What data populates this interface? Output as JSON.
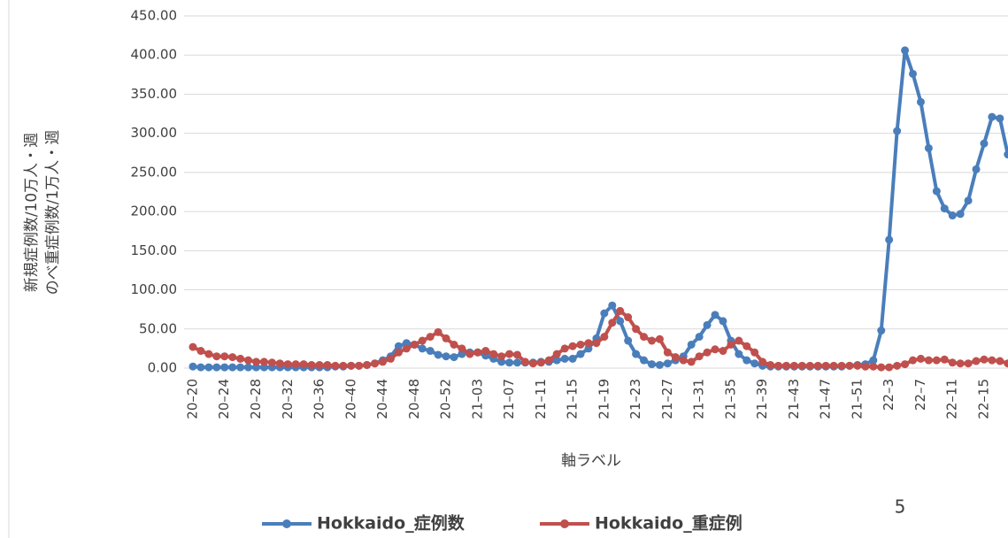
{
  "chart_data": {
    "type": "line",
    "y_label_lines": [
      "新規症例数/10万人・週",
      "のべ重症例数/1万人・週"
    ],
    "x_label": "軸ラベル",
    "annotation": "5",
    "categories": [
      "20–20",
      null,
      null,
      null,
      "20–24",
      null,
      null,
      null,
      "20–28",
      null,
      null,
      null,
      "20–32",
      null,
      null,
      null,
      "20–36",
      null,
      null,
      null,
      "20–40",
      null,
      null,
      null,
      "20–44",
      null,
      null,
      null,
      "20–48",
      null,
      null,
      null,
      "20–52",
      null,
      null,
      null,
      "21–03",
      null,
      null,
      null,
      "21–07",
      null,
      null,
      null,
      "21–11",
      null,
      null,
      null,
      "21–15",
      null,
      null,
      null,
      "21–19",
      null,
      null,
      null,
      "21–23",
      null,
      null,
      null,
      "21–27",
      null,
      null,
      null,
      "21–31",
      null,
      null,
      null,
      "21–35",
      null,
      null,
      null,
      "21–39",
      null,
      null,
      null,
      "21–43",
      null,
      null,
      null,
      "21–47",
      null,
      null,
      null,
      "21–51",
      null,
      null,
      null,
      "22–3",
      null,
      null,
      null,
      "22–7",
      null,
      null,
      null,
      "22–11",
      null,
      null,
      null,
      "22–15",
      null,
      null,
      null
    ],
    "series": [
      {
        "name": "Hokkaido_症例数",
        "color": "#4a7ebb",
        "values": [
          2,
          1,
          1,
          1,
          1,
          1,
          1,
          1,
          1,
          1,
          1,
          1,
          1,
          1,
          1,
          1,
          1,
          1,
          2,
          2,
          3,
          3,
          4,
          6,
          10,
          15,
          28,
          32,
          30,
          25,
          22,
          17,
          15,
          14,
          18,
          20,
          20,
          16,
          12,
          8,
          7,
          7,
          7,
          7,
          8,
          8,
          10,
          12,
          12,
          18,
          25,
          38,
          70,
          80,
          60,
          35,
          18,
          10,
          5,
          4,
          6,
          10,
          15,
          30,
          40,
          55,
          68,
          60,
          35,
          18,
          10,
          6,
          3,
          2,
          2,
          2,
          2,
          2,
          2,
          2,
          2,
          2,
          2,
          3,
          4,
          5,
          10,
          48,
          164,
          303,
          406,
          376,
          340,
          281,
          226,
          204,
          195,
          197,
          214,
          254,
          287,
          321,
          319,
          273
        ]
      },
      {
        "name": "Hokkaido_重症例",
        "color": "#c0504d",
        "values": [
          27,
          22,
          18,
          15,
          15,
          14,
          12,
          10,
          8,
          8,
          7,
          6,
          5,
          5,
          5,
          4,
          4,
          4,
          3,
          3,
          3,
          3,
          4,
          6,
          8,
          12,
          20,
          25,
          30,
          35,
          40,
          46,
          38,
          30,
          25,
          18,
          20,
          22,
          18,
          15,
          18,
          17,
          8,
          6,
          7,
          10,
          18,
          25,
          28,
          30,
          32,
          32,
          40,
          58,
          73,
          65,
          50,
          40,
          35,
          37,
          20,
          14,
          10,
          8,
          15,
          20,
          24,
          22,
          30,
          35,
          28,
          20,
          8,
          4,
          3,
          3,
          3,
          3,
          3,
          3,
          3,
          3,
          3,
          3,
          3,
          2,
          2,
          1,
          1,
          3,
          5,
          10,
          12,
          10,
          10,
          11,
          7,
          6,
          6,
          9,
          11,
          10,
          9,
          6
        ]
      }
    ],
    "ylim": [
      0,
      450
    ],
    "yticks": [
      {
        "value": 0,
        "label": "0.00"
      },
      {
        "value": 50,
        "label": "50.00"
      },
      {
        "value": 100,
        "label": "100.00"
      },
      {
        "value": 150,
        "label": "150.00"
      },
      {
        "value": 200,
        "label": "200.00"
      },
      {
        "value": 250,
        "label": "250.00"
      },
      {
        "value": 300,
        "label": "300.00"
      },
      {
        "value": 350,
        "label": "350.00"
      },
      {
        "value": 400,
        "label": "400.00"
      },
      {
        "value": 450,
        "label": "450.00"
      }
    ],
    "grid": true,
    "legend": "bottom"
  }
}
